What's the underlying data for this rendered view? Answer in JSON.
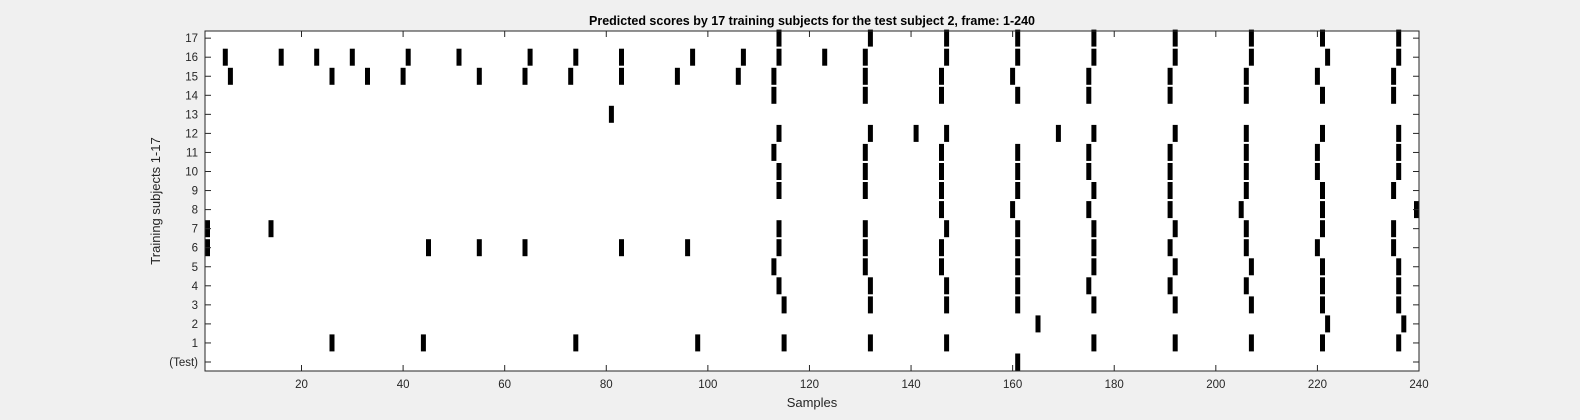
{
  "chart_data": {
    "type": "scatter",
    "title": "Predicted scores by 17 training subjects for the test subject 2, frame: 1-240",
    "xlabel": "Samples",
    "ylabel": "Training subjects 1-17",
    "xlim": [
      1,
      240
    ],
    "x_ticks": [
      20,
      40,
      60,
      80,
      100,
      120,
      140,
      160,
      180,
      200,
      220,
      240
    ],
    "y_ticks": [
      {
        "value": 0,
        "label": "(Test)"
      },
      {
        "value": 1,
        "label": "1"
      },
      {
        "value": 2,
        "label": "2"
      },
      {
        "value": 3,
        "label": "3"
      },
      {
        "value": 4,
        "label": "4"
      },
      {
        "value": 5,
        "label": "5"
      },
      {
        "value": 6,
        "label": "6"
      },
      {
        "value": 7,
        "label": "7"
      },
      {
        "value": 8,
        "label": "8"
      },
      {
        "value": 9,
        "label": "9"
      },
      {
        "value": 10,
        "label": "10"
      },
      {
        "value": 11,
        "label": "11"
      },
      {
        "value": 12,
        "label": "12"
      },
      {
        "value": 13,
        "label": "13"
      },
      {
        "value": 14,
        "label": "14"
      },
      {
        "value": 15,
        "label": "15"
      },
      {
        "value": 16,
        "label": "16"
      },
      {
        "value": 17,
        "label": "17"
      }
    ],
    "grid": false,
    "mark_color": "#000000",
    "background_color": "#ffffff",
    "rows": [
      {
        "subject": 0,
        "samples": [
          161
        ]
      },
      {
        "subject": 1,
        "samples": [
          26,
          44,
          74,
          98,
          115,
          132,
          147,
          176,
          192,
          207,
          221,
          236
        ]
      },
      {
        "subject": 2,
        "samples": [
          165,
          222,
          237
        ]
      },
      {
        "subject": 3,
        "samples": [
          115,
          132,
          147,
          161,
          176,
          192,
          207,
          221,
          236
        ]
      },
      {
        "subject": 4,
        "samples": [
          114,
          132,
          147,
          161,
          175,
          191,
          206,
          221,
          236
        ]
      },
      {
        "subject": 5,
        "samples": [
          113,
          131,
          146,
          161,
          176,
          192,
          207,
          221,
          236
        ]
      },
      {
        "subject": 6,
        "samples": [
          1,
          45,
          55,
          64,
          83,
          96,
          114,
          131,
          146,
          161,
          176,
          191,
          206,
          220,
          235
        ]
      },
      {
        "subject": 7,
        "samples": [
          1,
          14,
          114,
          131,
          147,
          161,
          176,
          192,
          206,
          221,
          235
        ]
      },
      {
        "subject": 8,
        "samples": [
          146,
          160,
          175,
          191,
          205,
          221,
          240
        ]
      },
      {
        "subject": 9,
        "samples": [
          114,
          131,
          146,
          161,
          176,
          191,
          206,
          221,
          235
        ]
      },
      {
        "subject": 10,
        "samples": [
          114,
          131,
          146,
          161,
          175,
          191,
          206,
          220,
          236
        ]
      },
      {
        "subject": 11,
        "samples": [
          113,
          131,
          146,
          161,
          175,
          191,
          206,
          220,
          236
        ]
      },
      {
        "subject": 12,
        "samples": [
          114,
          132,
          141,
          147,
          169,
          176,
          192,
          206,
          221,
          236
        ]
      },
      {
        "subject": 13,
        "samples": [
          81
        ]
      },
      {
        "subject": 14,
        "samples": [
          113,
          131,
          146,
          161,
          175,
          191,
          206,
          221,
          235
        ]
      },
      {
        "subject": 15,
        "samples": [
          6,
          26,
          33,
          40,
          55,
          64,
          73,
          83,
          94,
          106,
          113,
          131,
          146,
          160,
          175,
          191,
          206,
          220,
          235
        ]
      },
      {
        "subject": 16,
        "samples": [
          5,
          16,
          23,
          30,
          41,
          51,
          65,
          74,
          83,
          97,
          107,
          114,
          123,
          131,
          147,
          161,
          176,
          192,
          207,
          222,
          236
        ]
      },
      {
        "subject": 17,
        "samples": [
          114,
          132,
          147,
          161,
          176,
          192,
          207,
          221,
          236
        ]
      }
    ]
  }
}
